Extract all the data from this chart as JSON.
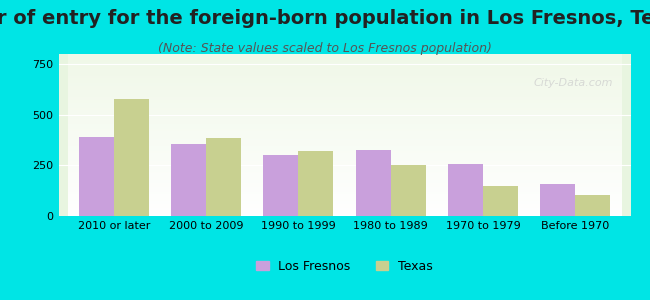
{
  "title": "Year of entry for the foreign-born population in Los Fresnos, Texas",
  "subtitle": "(Note: State values scaled to Los Fresnos population)",
  "categories": [
    "2010 or later",
    "2000 to 2009",
    "1990 to 1999",
    "1980 to 1989",
    "1970 to 1979",
    "Before 1970"
  ],
  "los_fresnos": [
    390,
    355,
    300,
    325,
    255,
    160
  ],
  "texas": [
    580,
    385,
    320,
    250,
    150,
    105
  ],
  "los_fresnos_color": "#c9a0dc",
  "texas_color": "#c8d090",
  "background_outer": "#00e5e5",
  "background_inner_top": "#e8f5e0",
  "background_inner_bottom": "#ffffff",
  "ylim": [
    0,
    800
  ],
  "yticks": [
    0,
    250,
    500,
    750
  ],
  "bar_width": 0.38,
  "title_fontsize": 14,
  "subtitle_fontsize": 9,
  "watermark": "City-Data.com"
}
